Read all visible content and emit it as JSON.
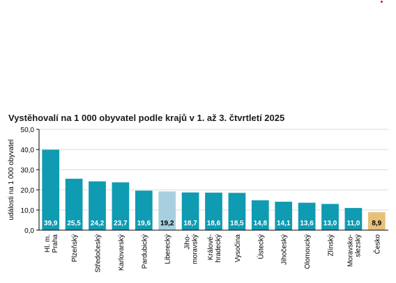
{
  "title": "Vystěhovalí na 1 000 obyvatel podle krajů v 1. až 3. čtvrtletí 2025",
  "colors": {
    "bar_default": "#0f9bb2",
    "bar_highlight": "#a8cfe0",
    "bar_total": "#e8c07a",
    "grid": "#d9d9d9",
    "axis": "#000000",
    "label_light": "#ffffff",
    "label_dark": "#000000"
  },
  "chart_data": {
    "type": "bar",
    "title": "Vystěhovalí na 1 000 obyvatel podle krajů v 1. až 3. čtvrtletí 2025",
    "ylabel": "události na 1 000 obyvatel",
    "xlabel": "",
    "ylim": [
      0,
      50
    ],
    "yticks": [
      "0,0",
      "10,0",
      "20,0",
      "30,0",
      "40,0",
      "50,0"
    ],
    "grid": true,
    "categories": [
      [
        "Hl. m.",
        "Praha"
      ],
      [
        "Plzeňský"
      ],
      [
        "Středočeský"
      ],
      [
        "Karlovarský"
      ],
      [
        "Pardubický"
      ],
      [
        "Liberecký"
      ],
      [
        "Jiho-",
        "moravský"
      ],
      [
        "Králové-",
        "hradecký"
      ],
      [
        "Vysočina"
      ],
      [
        "Ústecký"
      ],
      [
        "Jihočeský"
      ],
      [
        "Olomoucký"
      ],
      [
        "Zlínský"
      ],
      [
        "Moravsko-",
        "slezský"
      ],
      [
        "Česko"
      ]
    ],
    "values": [
      39.9,
      25.5,
      24.2,
      23.7,
      19.6,
      19.2,
      18.7,
      18.6,
      18.5,
      14.8,
      14.1,
      13.6,
      13.0,
      11.0,
      8.9
    ],
    "value_labels": [
      "39,9",
      "25,5",
      "24,2",
      "23,7",
      "19,6",
      "19,2",
      "18,7",
      "18,6",
      "18,5",
      "14,8",
      "14,1",
      "13,6",
      "13,0",
      "11,0",
      "8,9"
    ],
    "bar_style": [
      "default",
      "default",
      "default",
      "default",
      "default",
      "highlight",
      "default",
      "default",
      "default",
      "default",
      "default",
      "default",
      "default",
      "default",
      "total"
    ]
  }
}
